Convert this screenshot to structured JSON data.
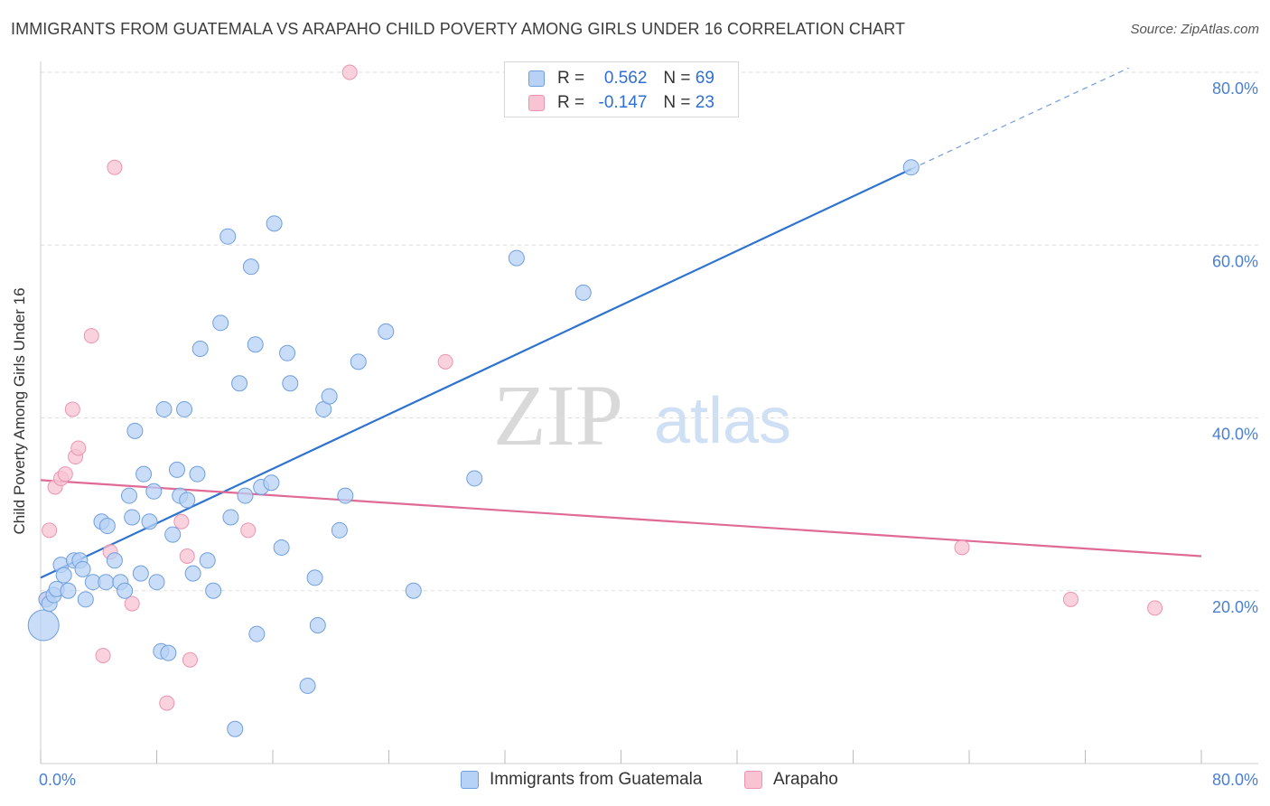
{
  "title": "IMMIGRANTS FROM GUATEMALA VS ARAPAHO CHILD POVERTY AMONG GIRLS UNDER 16 CORRELATION CHART",
  "source": "Source: ZipAtlas.com",
  "watermark": {
    "zip": "ZIP",
    "atlas": "atlas"
  },
  "legend": {
    "guatemala": {
      "r_label": "R =",
      "r_value": "0.562",
      "n_label": "N =",
      "n_value": "69"
    },
    "arapaho": {
      "r_label": "R =",
      "r_value": "-0.147",
      "n_label": "N =",
      "n_value": "23"
    }
  },
  "colors": {
    "guatemala_fill": "#b7d2f5",
    "guatemala_stroke": "#6f9fdf",
    "guatemala_line": "#2f73d0",
    "arapaho_fill": "#f8c3d3",
    "arapaho_stroke": "#ec95b1",
    "arapaho_line": "#e06a96",
    "tick_label": "#4a7fd4",
    "grid": "#dddddd"
  },
  "chart_data": {
    "type": "scatter",
    "xlabel": "",
    "ylabel": "Child Poverty Among Girls Under 16",
    "xlim": [
      0,
      80
    ],
    "ylim": [
      0,
      80
    ],
    "x_tick_labels": [
      "0.0%",
      "80.0%"
    ],
    "y_ticks": [
      20,
      40,
      60,
      80
    ],
    "y_tick_labels": [
      "20.0%",
      "40.0%",
      "60.0%",
      "80.0%"
    ],
    "grid": true,
    "legend_position": "top-center",
    "series": [
      {
        "name": "Immigrants from Guatemala",
        "color": "#6f9fdf",
        "points": [
          [
            0.2,
            16.0
          ],
          [
            0.4,
            19.0
          ],
          [
            0.6,
            18.5
          ],
          [
            0.9,
            19.5
          ],
          [
            1.1,
            20.2
          ],
          [
            1.4,
            23.0
          ],
          [
            1.6,
            21.8
          ],
          [
            1.9,
            20.0
          ],
          [
            2.3,
            23.5
          ],
          [
            2.7,
            23.5
          ],
          [
            2.9,
            22.5
          ],
          [
            3.1,
            19.0
          ],
          [
            3.6,
            21.0
          ],
          [
            4.2,
            28.0
          ],
          [
            4.5,
            21.0
          ],
          [
            4.6,
            27.5
          ],
          [
            5.1,
            23.5
          ],
          [
            5.5,
            21.0
          ],
          [
            5.8,
            20.0
          ],
          [
            6.1,
            31.0
          ],
          [
            6.3,
            28.5
          ],
          [
            6.5,
            38.5
          ],
          [
            6.9,
            22.0
          ],
          [
            7.1,
            33.5
          ],
          [
            7.5,
            28.0
          ],
          [
            7.8,
            31.5
          ],
          [
            8.0,
            21.0
          ],
          [
            8.3,
            13.0
          ],
          [
            8.5,
            41.0
          ],
          [
            8.8,
            12.8
          ],
          [
            9.1,
            26.5
          ],
          [
            9.4,
            34.0
          ],
          [
            9.6,
            31.0
          ],
          [
            9.9,
            41.0
          ],
          [
            10.1,
            30.5
          ],
          [
            10.5,
            22.0
          ],
          [
            10.8,
            33.5
          ],
          [
            11.0,
            48.0
          ],
          [
            11.5,
            23.5
          ],
          [
            11.9,
            20.0
          ],
          [
            12.4,
            51.0
          ],
          [
            12.9,
            61.0
          ],
          [
            13.1,
            28.5
          ],
          [
            13.4,
            4.0
          ],
          [
            13.7,
            44.0
          ],
          [
            14.1,
            31.0
          ],
          [
            14.5,
            57.5
          ],
          [
            14.8,
            48.5
          ],
          [
            14.9,
            15.0
          ],
          [
            15.2,
            32.0
          ],
          [
            15.9,
            32.5
          ],
          [
            16.1,
            62.5
          ],
          [
            16.6,
            25.0
          ],
          [
            17.0,
            47.5
          ],
          [
            17.2,
            44.0
          ],
          [
            18.4,
            9.0
          ],
          [
            18.9,
            21.5
          ],
          [
            19.1,
            16.0
          ],
          [
            19.5,
            41.0
          ],
          [
            19.9,
            42.5
          ],
          [
            20.6,
            27.0
          ],
          [
            21.0,
            31.0
          ],
          [
            21.9,
            46.5
          ],
          [
            23.8,
            50.0
          ],
          [
            25.7,
            20.0
          ],
          [
            29.9,
            33.0
          ],
          [
            32.8,
            58.5
          ],
          [
            37.4,
            54.5
          ],
          [
            60.0,
            69.0
          ]
        ],
        "trend": {
          "x_start": 0,
          "y_start": 21.5,
          "x_end": 60,
          "y_end": 68.8,
          "dashed_to_x": 75,
          "dashed_to_y": 80.5
        }
      },
      {
        "name": "Arapaho",
        "color": "#ec95b1",
        "points": [
          [
            0.4,
            19.0
          ],
          [
            0.6,
            27.0
          ],
          [
            1.0,
            32.0
          ],
          [
            1.4,
            33.0
          ],
          [
            1.7,
            33.5
          ],
          [
            2.2,
            41.0
          ],
          [
            2.4,
            35.5
          ],
          [
            2.6,
            36.5
          ],
          [
            3.5,
            49.5
          ],
          [
            4.3,
            12.5
          ],
          [
            4.8,
            24.5
          ],
          [
            5.1,
            69.0
          ],
          [
            6.3,
            18.5
          ],
          [
            8.7,
            7.0
          ],
          [
            9.7,
            28.0
          ],
          [
            10.1,
            24.0
          ],
          [
            10.3,
            12.0
          ],
          [
            14.3,
            27.0
          ],
          [
            21.3,
            80.0
          ],
          [
            27.9,
            46.5
          ],
          [
            63.5,
            25.0
          ],
          [
            71.0,
            19.0
          ],
          [
            76.8,
            18.0
          ]
        ],
        "trend": {
          "x_start": 0,
          "y_start": 32.8,
          "x_end": 80,
          "y_end": 24.0
        }
      }
    ]
  },
  "bottom_legend": {
    "guatemala_label": "Immigrants from Guatemala",
    "arapaho_label": "Arapaho"
  }
}
